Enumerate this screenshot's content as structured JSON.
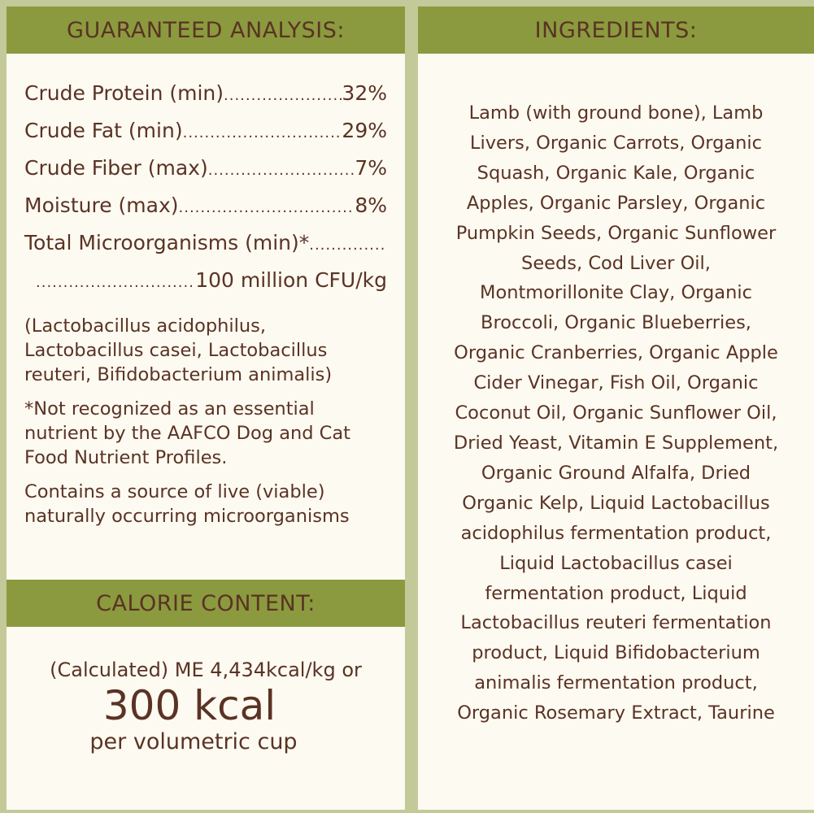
{
  "colors": {
    "header": "#8b9a3e",
    "text": "#5a3324",
    "panel": "#fdfaf1",
    "border": "#c4c999"
  },
  "analysis": {
    "title": "GUARANTEED ANALYSIS:",
    "rows": [
      {
        "label": "Crude Protein (min)",
        "value": "32%"
      },
      {
        "label": "Crude Fat (min)",
        "value": "29%"
      },
      {
        "label": "Crude Fiber (max)",
        "value": "7%"
      },
      {
        "label": "Moisture (max)",
        "value": "8%"
      },
      {
        "label": "Total Microorganisms (min)*",
        "value": ""
      },
      {
        "label": "",
        "value": "100 million CFU/kg"
      }
    ],
    "strains": "(Lactobacillus acidophilus, Lactobacillus casei, Lactobacillus reuteri, Bifidobacterium animalis)",
    "footnote": "*Not recognized as an essential nutrient by the AAFCO Dog and Cat Food Nutrient Profiles.",
    "live": "Contains a source of live (viable) naturally occurring microorganisms"
  },
  "calorie": {
    "title": "CALORIE CONTENT:",
    "line1": "(Calculated) ME 4,434kcal/kg or",
    "big": "300 kcal",
    "line3": "per volumetric cup"
  },
  "ingredients": {
    "title": "INGREDIENTS:",
    "lines": [
      "Lamb (with ground bone), Lamb",
      "Livers, Organic Carrots, Organic",
      "Squash, Organic Kale, Organic",
      "Apples, Organic Parsley, Organic",
      "Pumpkin Seeds, Organic Sunflower",
      "Seeds, Cod Liver Oil,",
      "Montmorillonite Clay, Organic",
      "Broccoli, Organic Blueberries,",
      "Organic Cranberries, Organic Apple",
      "Cider Vinegar, Fish Oil, Organic",
      "Coconut Oil, Organic Sunflower Oil,",
      "Dried Yeast, Vitamin E Supplement,",
      "Organic Ground Alfalfa, Dried",
      "Organic Kelp, Liquid Lactobacillus",
      "acidophilus fermentation product,",
      "Liquid Lactobacillus casei",
      "fermentation product, Liquid",
      "Lactobacillus reuteri fermentation",
      "product, Liquid Bifidobacterium",
      "animalis fermentation product,",
      "Organic Rosemary Extract, Taurine"
    ]
  }
}
